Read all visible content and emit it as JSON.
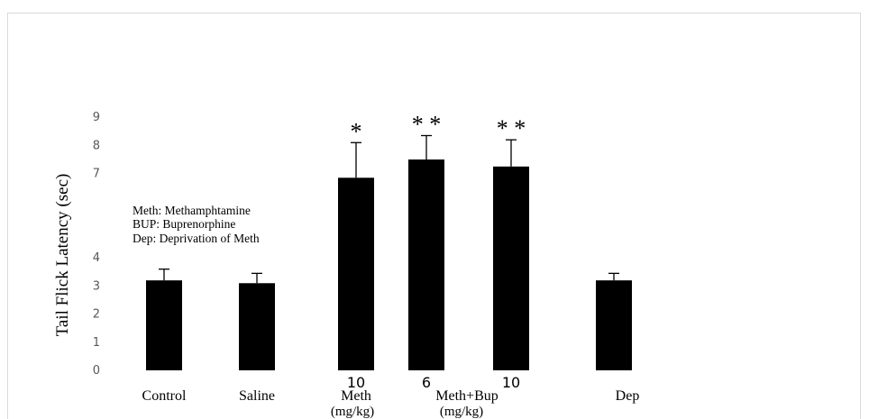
{
  "chart_data": {
    "type": "bar",
    "title": "",
    "ylabel": "Tail Flick Latency (sec)",
    "xlabel": "",
    "ylim": [
      0,
      9
    ],
    "yticks": [
      "0",
      "1",
      "2",
      "3",
      "4",
      "",
      "",
      "7",
      "8",
      "9"
    ],
    "categories": [
      "Control",
      "Saline",
      "Meth",
      "Meth+Bup",
      "Meth+Bup",
      "Dep"
    ],
    "dose_labels": [
      "",
      "",
      "10",
      "6",
      "10",
      ""
    ],
    "unit_labels": [
      "",
      "",
      "(mg/kg)",
      "(mg/kg)",
      "",
      ""
    ],
    "values": [
      3.2,
      3.1,
      6.85,
      7.5,
      7.25,
      3.2
    ],
    "errors": [
      0.4,
      0.35,
      1.25,
      0.85,
      0.95,
      0.25
    ],
    "significance": [
      "",
      "",
      "*",
      "**",
      "**",
      ""
    ],
    "bar_color": "#000000",
    "grid": false,
    "legend_notes": [
      "Meth: Methamphtamine",
      "BUP: Buprenorphine",
      "Dep:  Deprivation of Meth"
    ]
  }
}
